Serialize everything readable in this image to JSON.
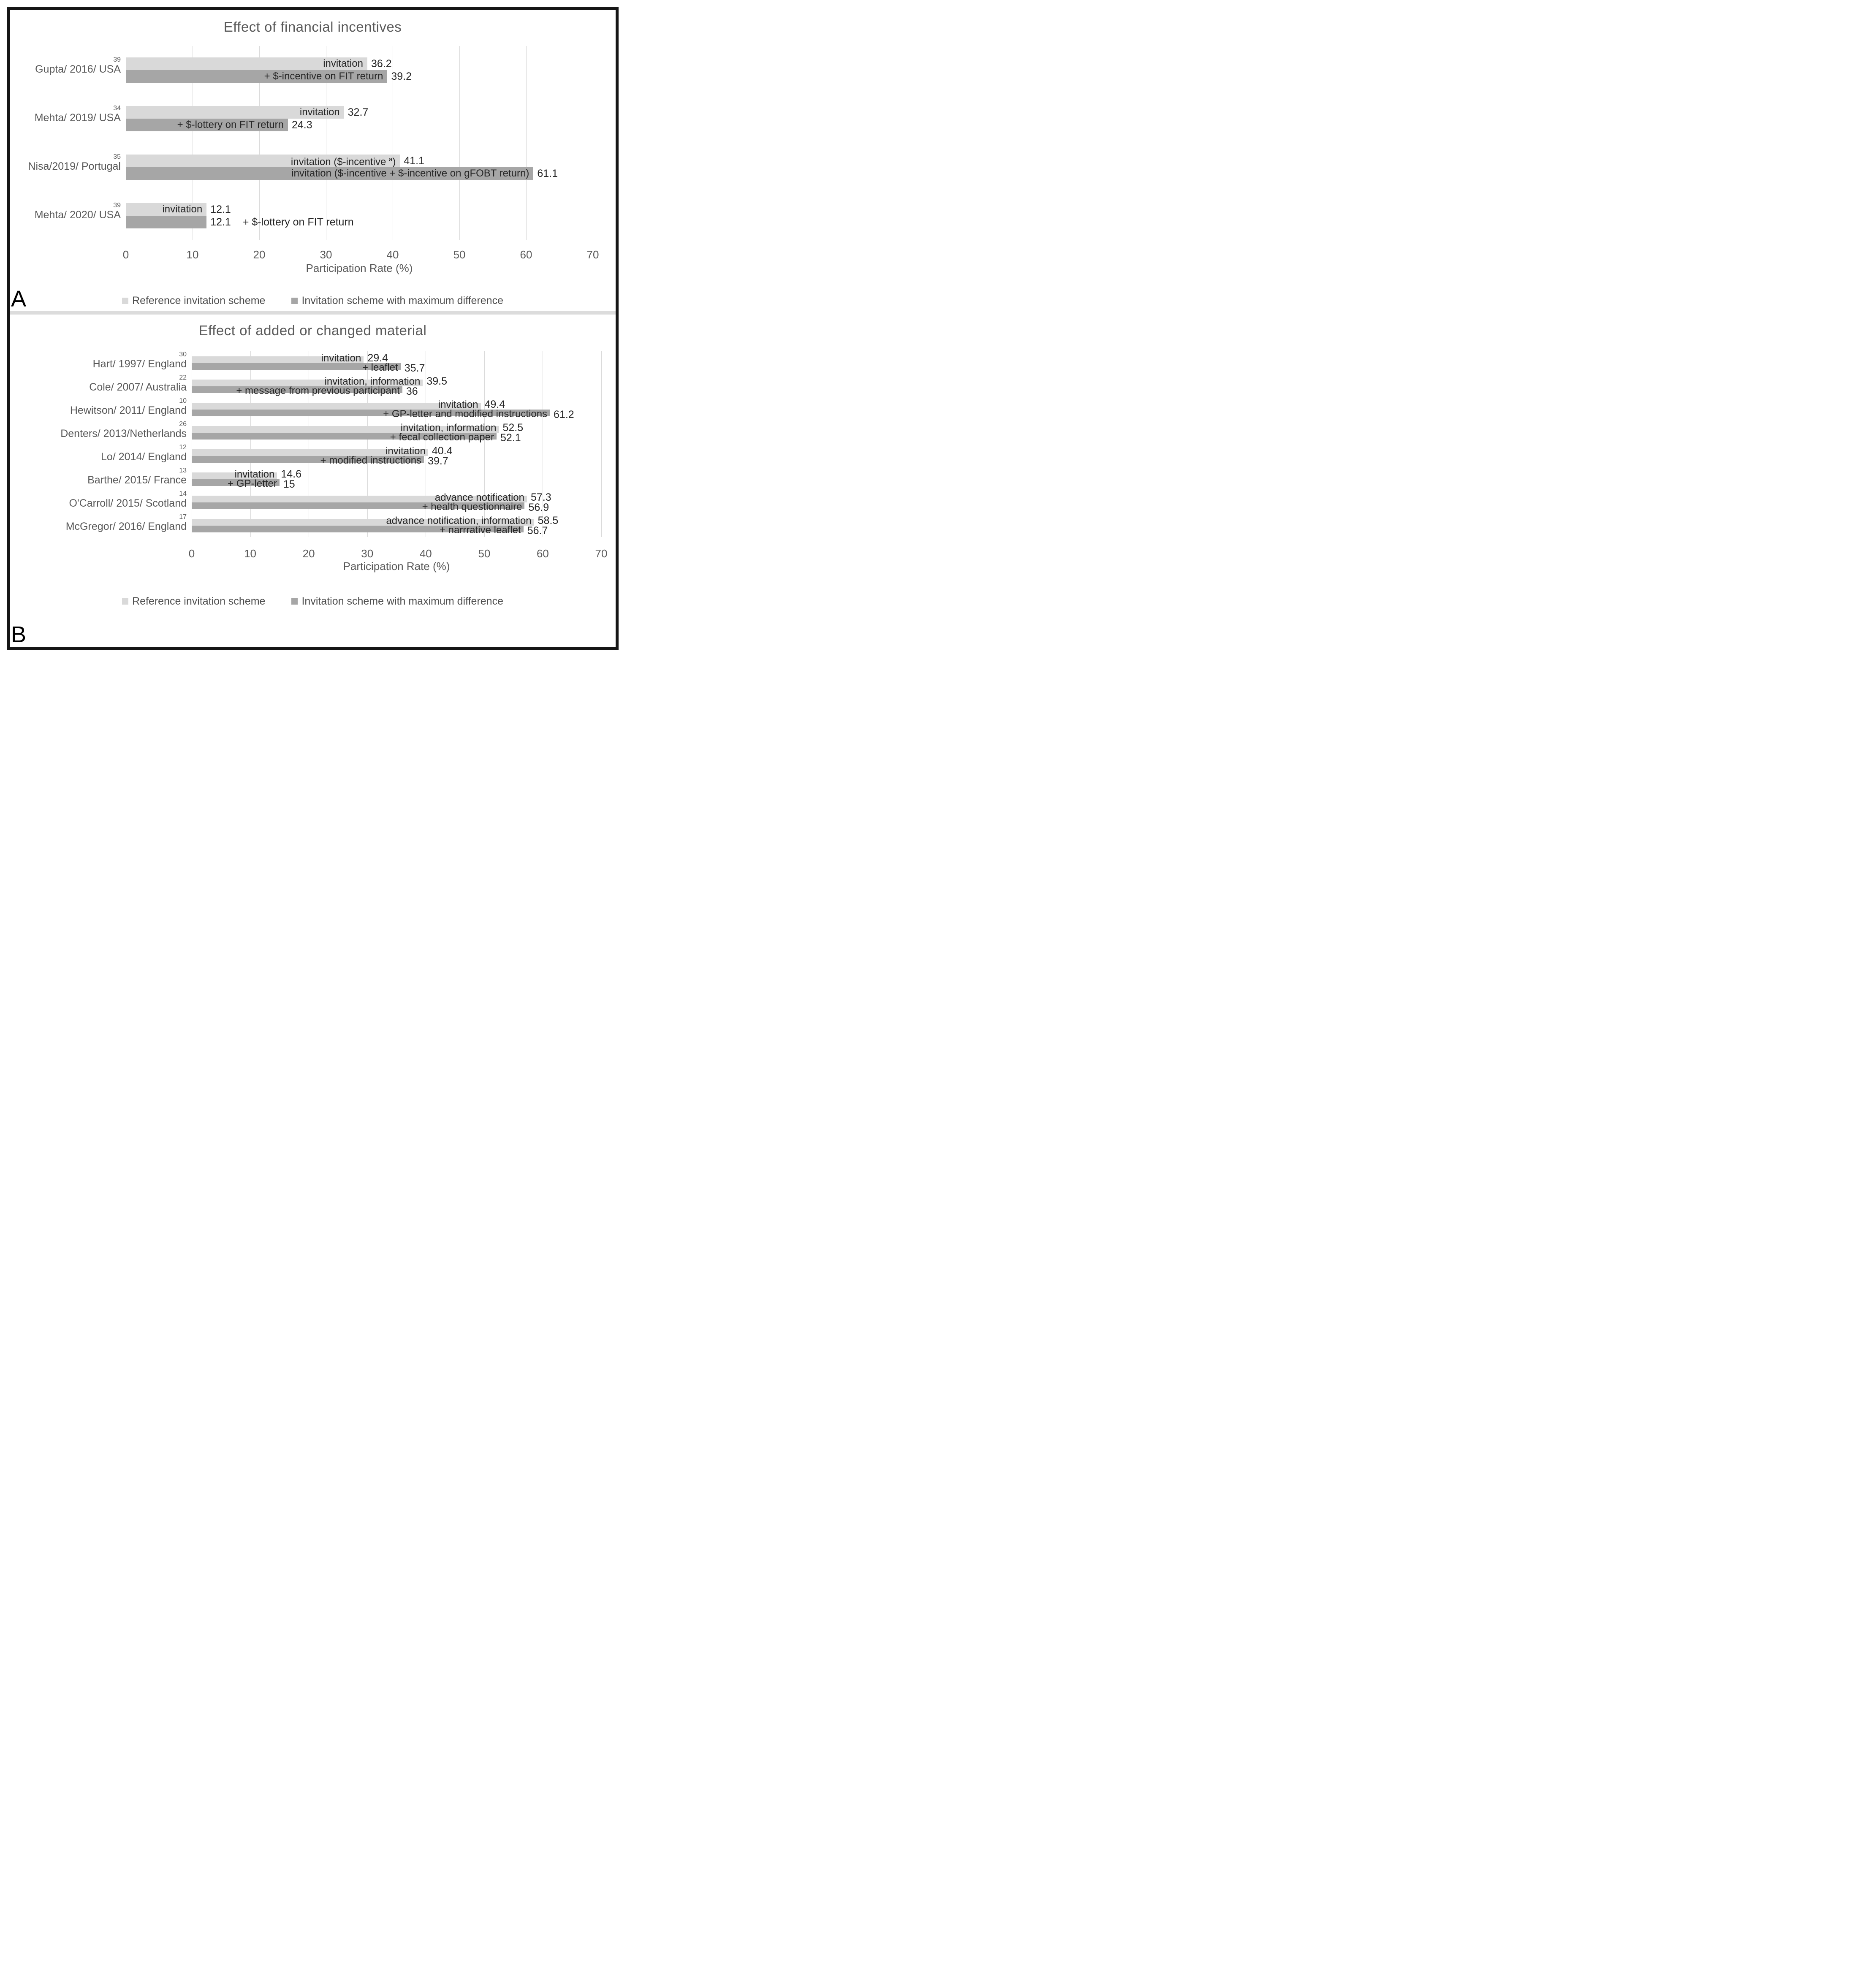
{
  "figure_type": "two-panel horizontal grouped bar chart",
  "colors": {
    "reference_bar": "#d9d9d9",
    "max_diff_bar": "#a6a6a6",
    "grid_line": "#d9d9d9",
    "axis_text": "#595959",
    "bar_label_text": "#262626",
    "title_text": "#595959",
    "panel_divider": "#dcdcdc",
    "frame_border": "#161616"
  },
  "chart_data": [
    {
      "type": "bar",
      "orientation": "horizontal",
      "panel_letter": "A",
      "title": "Effect of financial incentives",
      "xlabel": "Participation Rate (%)",
      "xlim": [
        0,
        70
      ],
      "x_ticks": [
        "0",
        "10",
        "20",
        "30",
        "40",
        "50",
        "60",
        "70"
      ],
      "grid": true,
      "legend_position": "bottom",
      "legend": [
        {
          "series": "reference",
          "label": "Reference invitation scheme"
        },
        {
          "series": "max_diff",
          "label": "Invitation scheme with maximum difference"
        }
      ],
      "categories": [
        {
          "study": "Gupta/ 2016/ USA",
          "ref_mark": "39",
          "bars": [
            {
              "series": "reference",
              "label": "invitation",
              "value": 36.2,
              "value_text": "36.2",
              "label_placement": "inside"
            },
            {
              "series": "max_diff",
              "label": "+ $-incentive on FIT return",
              "value": 39.2,
              "value_text": "39.2",
              "label_placement": "inside"
            }
          ]
        },
        {
          "study": "Mehta/ 2019/ USA",
          "ref_mark": "34",
          "bars": [
            {
              "series": "reference",
              "label": "invitation",
              "value": 32.7,
              "value_text": "32.7",
              "label_placement": "inside"
            },
            {
              "series": "max_diff",
              "label": "+ $-lottery on FIT return",
              "value": 24.3,
              "value_text": "24.3",
              "label_placement": "inside"
            }
          ]
        },
        {
          "study": "Nisa/2019/ Portugal",
          "ref_mark": "35",
          "bars": [
            {
              "series": "reference",
              "label": "invitation ($-incentive ",
              "label_sup": "a",
              "label_suffix": ")",
              "value": 41.1,
              "value_text": "41.1",
              "label_placement": "inside"
            },
            {
              "series": "max_diff",
              "label": "invitation ($-incentive + $-incentive on gFOBT return)",
              "value": 61.1,
              "value_text": "61.1",
              "label_placement": "inside"
            }
          ]
        },
        {
          "study": "Mehta/ 2020/ USA",
          "ref_mark": "39",
          "bars": [
            {
              "series": "reference",
              "label": "invitation",
              "value": 12.1,
              "value_text": "12.1",
              "label_placement": "inside"
            },
            {
              "series": "max_diff",
              "label": "+ $-lottery on FIT return",
              "value": 12.1,
              "value_text": "12.1",
              "label_placement": "after_value"
            }
          ]
        }
      ]
    },
    {
      "type": "bar",
      "orientation": "horizontal",
      "panel_letter": "B",
      "title": "Effect of added or changed material",
      "xlabel": "Participation Rate (%)",
      "xlim": [
        0,
        70
      ],
      "x_ticks": [
        "0",
        "10",
        "20",
        "30",
        "40",
        "50",
        "60",
        "70"
      ],
      "grid": true,
      "legend_position": "bottom",
      "legend": [
        {
          "series": "reference",
          "label": "Reference invitation scheme"
        },
        {
          "series": "max_diff",
          "label": "Invitation scheme with maximum difference"
        }
      ],
      "categories": [
        {
          "study": "Hart/ 1997/ England",
          "ref_mark": "30",
          "bars": [
            {
              "series": "reference",
              "label": "invitation",
              "value": 29.4,
              "value_text": "29.4",
              "label_placement": "inside"
            },
            {
              "series": "max_diff",
              "label": "+ leaflet",
              "value": 35.7,
              "value_text": "35.7",
              "label_placement": "inside"
            }
          ]
        },
        {
          "study": "Cole/ 2007/ Australia",
          "ref_mark": "22",
          "bars": [
            {
              "series": "reference",
              "label": "invitation, information",
              "value": 39.5,
              "value_text": "39.5",
              "label_placement": "inside"
            },
            {
              "series": "max_diff",
              "label": "+ message from previous participant",
              "value": 36,
              "value_text": "36",
              "label_placement": "inside"
            }
          ]
        },
        {
          "study": "Hewitson/ 2011/ England",
          "ref_mark": "10",
          "bars": [
            {
              "series": "reference",
              "label": "invitation",
              "value": 49.4,
              "value_text": "49.4",
              "label_placement": "inside"
            },
            {
              "series": "max_diff",
              "label": "+ GP-letter and modified instructions",
              "value": 61.2,
              "value_text": "61.2",
              "label_placement": "inside"
            }
          ]
        },
        {
          "study": "Denters/ 2013/Netherlands",
          "ref_mark": "26",
          "bars": [
            {
              "series": "reference",
              "label": "invitation, information",
              "value": 52.5,
              "value_text": "52.5",
              "label_placement": "inside"
            },
            {
              "series": "max_diff",
              "label": "+ fecal collection paper",
              "value": 52.1,
              "value_text": "52.1",
              "label_placement": "inside"
            }
          ]
        },
        {
          "study": "Lo/ 2014/ England",
          "ref_mark": "12",
          "bars": [
            {
              "series": "reference",
              "label": "invitation",
              "value": 40.4,
              "value_text": "40.4",
              "label_placement": "inside"
            },
            {
              "series": "max_diff",
              "label": "+ modified instructions",
              "value": 39.7,
              "value_text": "39.7",
              "label_placement": "inside"
            }
          ]
        },
        {
          "study": "Barthe/ 2015/ France",
          "ref_mark": "13",
          "bars": [
            {
              "series": "reference",
              "label": "invitation",
              "value": 14.6,
              "value_text": "14.6",
              "label_placement": "inside"
            },
            {
              "series": "max_diff",
              "label": "+ GP-letter",
              "value": 15,
              "value_text": "15",
              "label_placement": "inside"
            }
          ]
        },
        {
          "study": "O'Carroll/ 2015/ Scotland",
          "ref_mark": "14",
          "bars": [
            {
              "series": "reference",
              "label": "advance notification",
              "value": 57.3,
              "value_text": "57.3",
              "label_placement": "inside"
            },
            {
              "series": "max_diff",
              "label": "+ health questionnaire",
              "value": 56.9,
              "value_text": "56.9",
              "label_placement": "inside"
            }
          ]
        },
        {
          "study": "McGregor/ 2016/ England",
          "ref_mark": "17",
          "bars": [
            {
              "series": "reference",
              "label": "advance notification, information",
              "value": 58.5,
              "value_text": "58.5",
              "label_placement": "inside"
            },
            {
              "series": "max_diff",
              "label": "+ narrrative leaflet",
              "value": 56.7,
              "value_text": "56.7",
              "label_placement": "inside"
            }
          ]
        }
      ]
    }
  ]
}
